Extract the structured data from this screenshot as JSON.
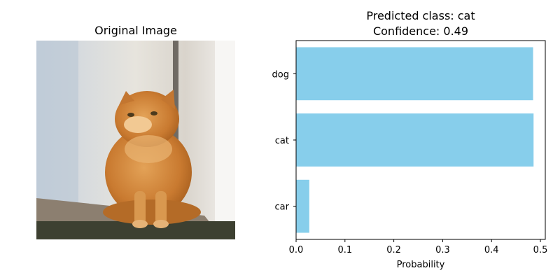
{
  "image_panel": {
    "title": "Original Image",
    "image_icon": "orange-tabby-cat-photo"
  },
  "chart_data": {
    "type": "bar",
    "orientation": "horizontal",
    "title_lines": [
      "Predicted class: cat",
      "Confidence: 0.49"
    ],
    "categories": [
      "car",
      "cat",
      "dog"
    ],
    "values": [
      0.027,
      0.486,
      0.485
    ],
    "xlabel": "Probability",
    "ylabel": "",
    "xlim": [
      0,
      0.51
    ],
    "xticks": [
      "0.0",
      "0.1",
      "0.2",
      "0.3",
      "0.4",
      "0.5"
    ],
    "grid": false,
    "bar_color": "#87ceeb"
  }
}
